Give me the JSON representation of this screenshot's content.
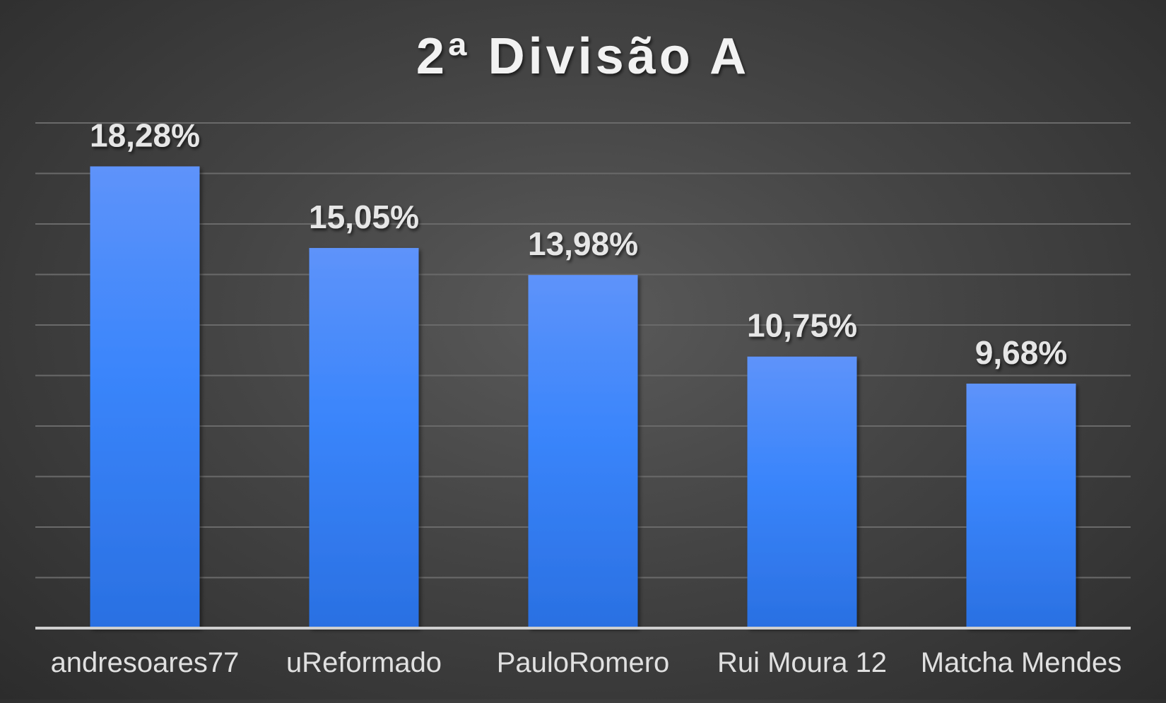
{
  "chart_data": {
    "type": "bar",
    "title": "2ª Divisão A",
    "xlabel": "",
    "ylabel": "",
    "categories": [
      "andresoares77",
      "uReformado",
      "PauloRomero",
      "Rui Moura 12",
      "Matcha Mendes"
    ],
    "values": [
      18.28,
      15.05,
      13.98,
      10.75,
      9.68
    ],
    "data_labels": [
      "18,28%",
      "15,05%",
      "13,98%",
      "10,75%",
      "9,68%"
    ],
    "ylim": [
      0,
      20
    ],
    "ytick_step": 2,
    "grid": true,
    "legend": "none",
    "bar_color": "#3a85f7",
    "background_color": "#4a4a4a"
  }
}
